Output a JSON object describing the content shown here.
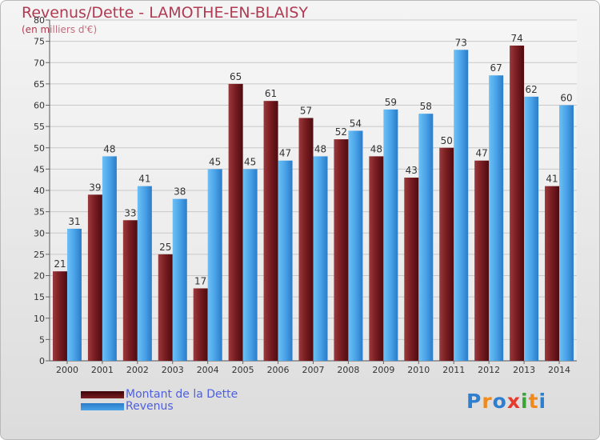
{
  "chart_data": {
    "type": "bar",
    "title": "Revenus/Dette - LAMOTHE-EN-BLAISY",
    "subtitle": "(en milliers d'€)",
    "categories": [
      "2000",
      "2001",
      "2002",
      "2003",
      "2004",
      "2005",
      "2006",
      "2007",
      "2008",
      "2009",
      "2010",
      "2011",
      "2012",
      "2013",
      "2014"
    ],
    "series": [
      {
        "name": "Montant de la Dette",
        "color": "#7a1e22",
        "values": [
          21,
          39,
          33,
          25,
          17,
          65,
          61,
          57,
          52,
          48,
          43,
          50,
          47,
          74,
          41
        ]
      },
      {
        "name": "Revenus",
        "color": "#4aa3e8",
        "values": [
          31,
          48,
          41,
          38,
          45,
          45,
          47,
          48,
          54,
          59,
          58,
          73,
          67,
          62,
          60
        ]
      }
    ],
    "ylim": [
      0,
      80
    ],
    "yticks": [
      0,
      5,
      10,
      15,
      20,
      25,
      30,
      35,
      40,
      45,
      50,
      55,
      60,
      65,
      70,
      75,
      80
    ],
    "xlabel": "",
    "ylabel": "",
    "grid": true,
    "legend": "bottom-left"
  },
  "logo": {
    "letters": [
      "P",
      "r",
      "o",
      "x",
      "i",
      "t",
      "i"
    ],
    "colors": [
      "#2f7fd0",
      "#f08a1c",
      "#2f7fd0",
      "#e53a2c",
      "#3aa535",
      "#f08a1c",
      "#2f7fd0"
    ]
  }
}
